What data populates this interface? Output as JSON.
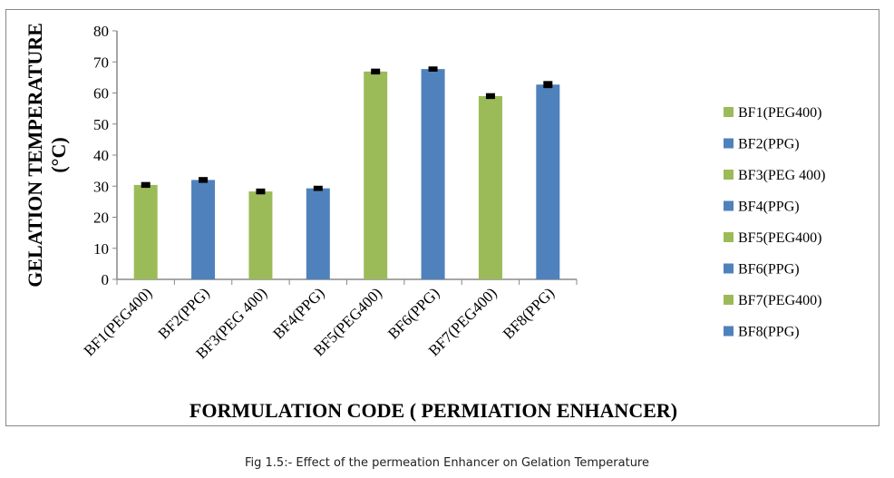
{
  "chart_data": {
    "type": "bar",
    "categories": [
      "BF1(PEG400)",
      "BF2(PPG)",
      "BF3(PEG 400)",
      "BF4(PPG)",
      "BF5(PEG400)",
      "BF6(PPG)",
      "BF7(PEG400)",
      "BF8(PPG)"
    ],
    "values": [
      30.4,
      32.0,
      28.3,
      29.3,
      66.9,
      67.7,
      59.0,
      62.7
    ],
    "errors": [
      0.5,
      0.5,
      0.5,
      0.4,
      0.5,
      0.4,
      0.5,
      0.7
    ],
    "colors": [
      "#9bbb59",
      "#4f81bd",
      "#9bbb59",
      "#4f81bd",
      "#9bbb59",
      "#4f81bd",
      "#9bbb59",
      "#4f81bd"
    ],
    "legend": [
      "BF1(PEG400)",
      "BF2(PPG)",
      "BF3(PEG 400)",
      "BF4(PPG)",
      "BF5(PEG400)",
      "BF6(PPG)",
      "BF7(PEG400)",
      "BF8(PPG)"
    ],
    "legend_placement": "right",
    "xlabel": "FORMULATION CODE ( PERMIATION ENHANCER)",
    "ylabel_line1": "GELATION TEMPERATURE",
    "ylabel_line2": "(°C)",
    "ylim": [
      0,
      80
    ],
    "yticks": [
      0,
      10,
      20,
      30,
      40,
      50,
      60,
      70,
      80
    ],
    "grid": false
  },
  "caption": "Fig 1.5:- Effect of the permeation Enhancer on Gelation Temperature"
}
